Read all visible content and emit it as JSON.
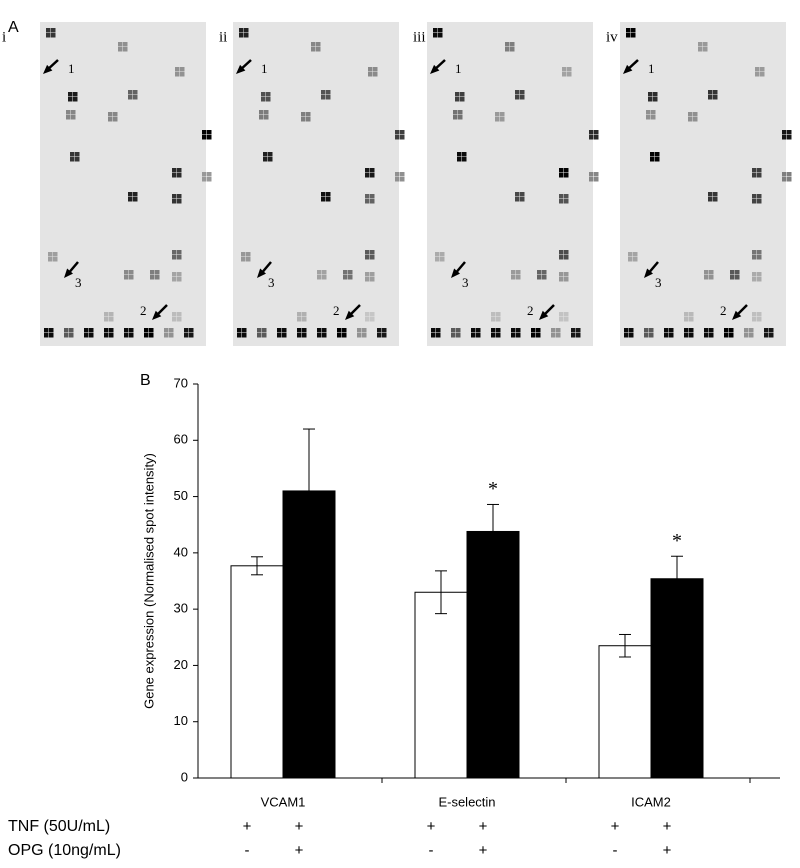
{
  "panel_a": {
    "label": "A",
    "panels": [
      {
        "label": "i",
        "arrows": [
          "1",
          "2",
          "3"
        ]
      },
      {
        "label": "ii",
        "arrows": [
          "1",
          "2",
          "3"
        ]
      },
      {
        "label": "iii",
        "arrows": [
          "1",
          "2",
          "3"
        ]
      },
      {
        "label": "iv",
        "arrows": [
          "1",
          "2",
          "3"
        ]
      }
    ]
  },
  "chart_data": {
    "type": "bar",
    "panel_label": "B",
    "y_label": "Gene expression (Normalised spot intensity)",
    "categories": [
      "VCAM1",
      "E-selectin",
      "ICAM2"
    ],
    "series": [
      {
        "color": "#ffffff",
        "values": [
          37.7,
          33,
          23.5
        ],
        "errors": [
          1.6,
          3.8,
          2
        ]
      },
      {
        "color": "#000000",
        "values": [
          51,
          43.8,
          35.4
        ],
        "errors": [
          11,
          4.8,
          4
        ],
        "labels": [
          null,
          "*",
          "*"
        ]
      }
    ],
    "ylim": [
      0,
      70
    ],
    "yticks": [
      0,
      10,
      20,
      30,
      40,
      50,
      60,
      70
    ],
    "conditions": [
      {
        "label": "TNF (50U/mL)",
        "marks": [
          "+",
          "+",
          "+",
          "+",
          "+",
          "+"
        ]
      },
      {
        "label": "OPG (10ng/mL)",
        "marks": [
          "-",
          "+",
          "-",
          "+",
          "-",
          "+"
        ]
      }
    ]
  }
}
